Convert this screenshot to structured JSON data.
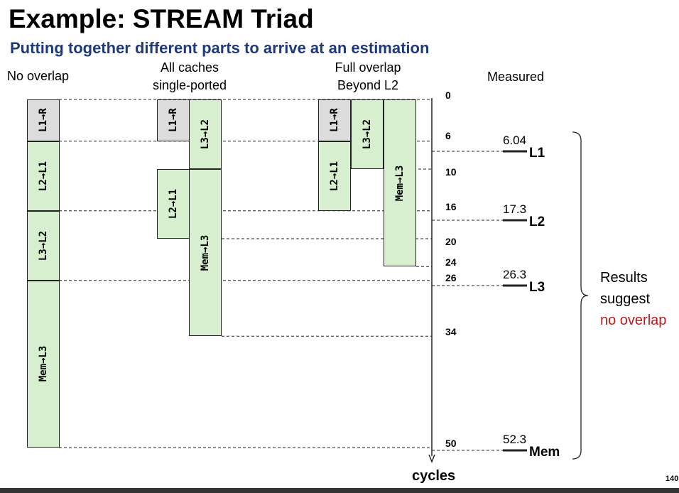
{
  "title": "Example: STREAM Triad",
  "subtitle": "Putting together different parts to arrive at an estimation",
  "headers": {
    "no_overlap": "No overlap",
    "single_ported_1": "All caches",
    "single_ported_2": "single-ported",
    "full_overlap_1": "Full overlap",
    "full_overlap_2": "Beyond L2",
    "measured": "Measured"
  },
  "blocks": [
    {
      "label": "L1→R",
      "start": 0,
      "end": 6,
      "column": "no_overlap",
      "color": "gray"
    },
    {
      "label": "L2→L1",
      "start": 6,
      "end": 16,
      "column": "no_overlap",
      "color": "green"
    },
    {
      "label": "L3→L2",
      "start": 16,
      "end": 26,
      "column": "no_overlap",
      "color": "green"
    },
    {
      "label": "Mem→L3",
      "start": 26,
      "end": 50,
      "column": "no_overlap",
      "color": "green"
    },
    {
      "label": "L1→R",
      "start": 0,
      "end": 6,
      "column": "sp_a",
      "color": "gray"
    },
    {
      "label": "L2→L1",
      "start": 10,
      "end": 20,
      "column": "sp_a",
      "color": "green"
    },
    {
      "label": "L3→L2",
      "start": 0,
      "end": 10,
      "column": "sp_b",
      "color": "green"
    },
    {
      "label": "Mem→L3",
      "start": 10,
      "end": 34,
      "column": "sp_b",
      "color": "green"
    },
    {
      "label": "L1→R",
      "start": 0,
      "end": 6,
      "column": "fo_a",
      "color": "gray"
    },
    {
      "label": "L2→L1",
      "start": 6,
      "end": 16,
      "column": "fo_a",
      "color": "green"
    },
    {
      "label": "L3→L2",
      "start": 0,
      "end": 10,
      "column": "fo_b",
      "color": "green"
    },
    {
      "label": "Mem→L3",
      "start": 0,
      "end": 24,
      "column": "fo_c",
      "color": "green"
    }
  ],
  "axis_ticks": [
    "0",
    "6",
    "10",
    "16",
    "20",
    "24",
    "26",
    "34",
    "50"
  ],
  "axis_label": "cycles",
  "measured": [
    {
      "value": "6.04",
      "level": "L1",
      "cycles": 6.04
    },
    {
      "value": "17.3",
      "level": "L2",
      "cycles": 17.3
    },
    {
      "value": "26.3",
      "level": "L3",
      "cycles": 26.3
    },
    {
      "value": "52.3",
      "level": "Mem",
      "cycles": 52.3
    }
  ],
  "conclusion": {
    "line1": "Results",
    "line2": "suggest",
    "line3": "no overlap"
  },
  "page_number": "140",
  "colors": {
    "gray_block": "#dcdcdc",
    "green_block": "#d8efcf",
    "subtitle": "#1f3a7a",
    "highlight": "#c0181a"
  }
}
